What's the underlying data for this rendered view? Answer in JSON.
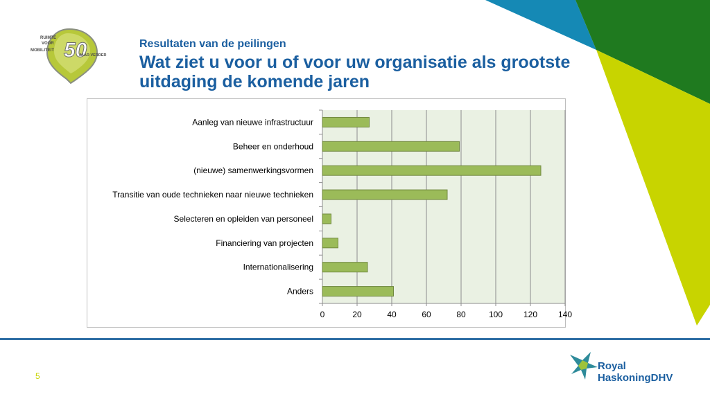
{
  "header": {
    "subtitle": "Resultaten van de peilingen",
    "title": "Wat ziet u voor u of voor uw organisatie als grootste uitdaging de komende jaren"
  },
  "logo50": {
    "number": "50",
    "line1": "RUIMTE",
    "line2": "VOOR",
    "line3": "MOBILITEIT",
    "tagline": "JAAR VERDER"
  },
  "brand": {
    "line1": "Royal",
    "line2": "HaskoningDHV"
  },
  "page_number": "5",
  "colors": {
    "title_blue": "#1b5fa0",
    "bar_fill": "#9bbb59",
    "bar_stroke": "#71893f",
    "plot_bg": "#eaf1e3",
    "corner_teal": "#1589b5",
    "corner_green": "#1f7a1f",
    "corner_lime": "#c8d400"
  },
  "chart_data": {
    "type": "bar",
    "orientation": "horizontal",
    "categories": [
      "Aanleg van nieuwe infrastructuur",
      "Beheer en onderhoud",
      "(nieuwe) samenwerkingsvormen",
      "Transitie van oude technieken naar nieuwe technieken",
      "Selecteren en opleiden van personeel",
      "Financiering van projecten",
      "Internationalisering",
      "Anders"
    ],
    "values": [
      27,
      79,
      126,
      72,
      5,
      9,
      26,
      41
    ],
    "xlim": [
      0,
      140
    ],
    "xticks": [
      "0",
      "20",
      "40",
      "60",
      "80",
      "100",
      "120",
      "140"
    ],
    "grid": true,
    "legend": "none"
  }
}
